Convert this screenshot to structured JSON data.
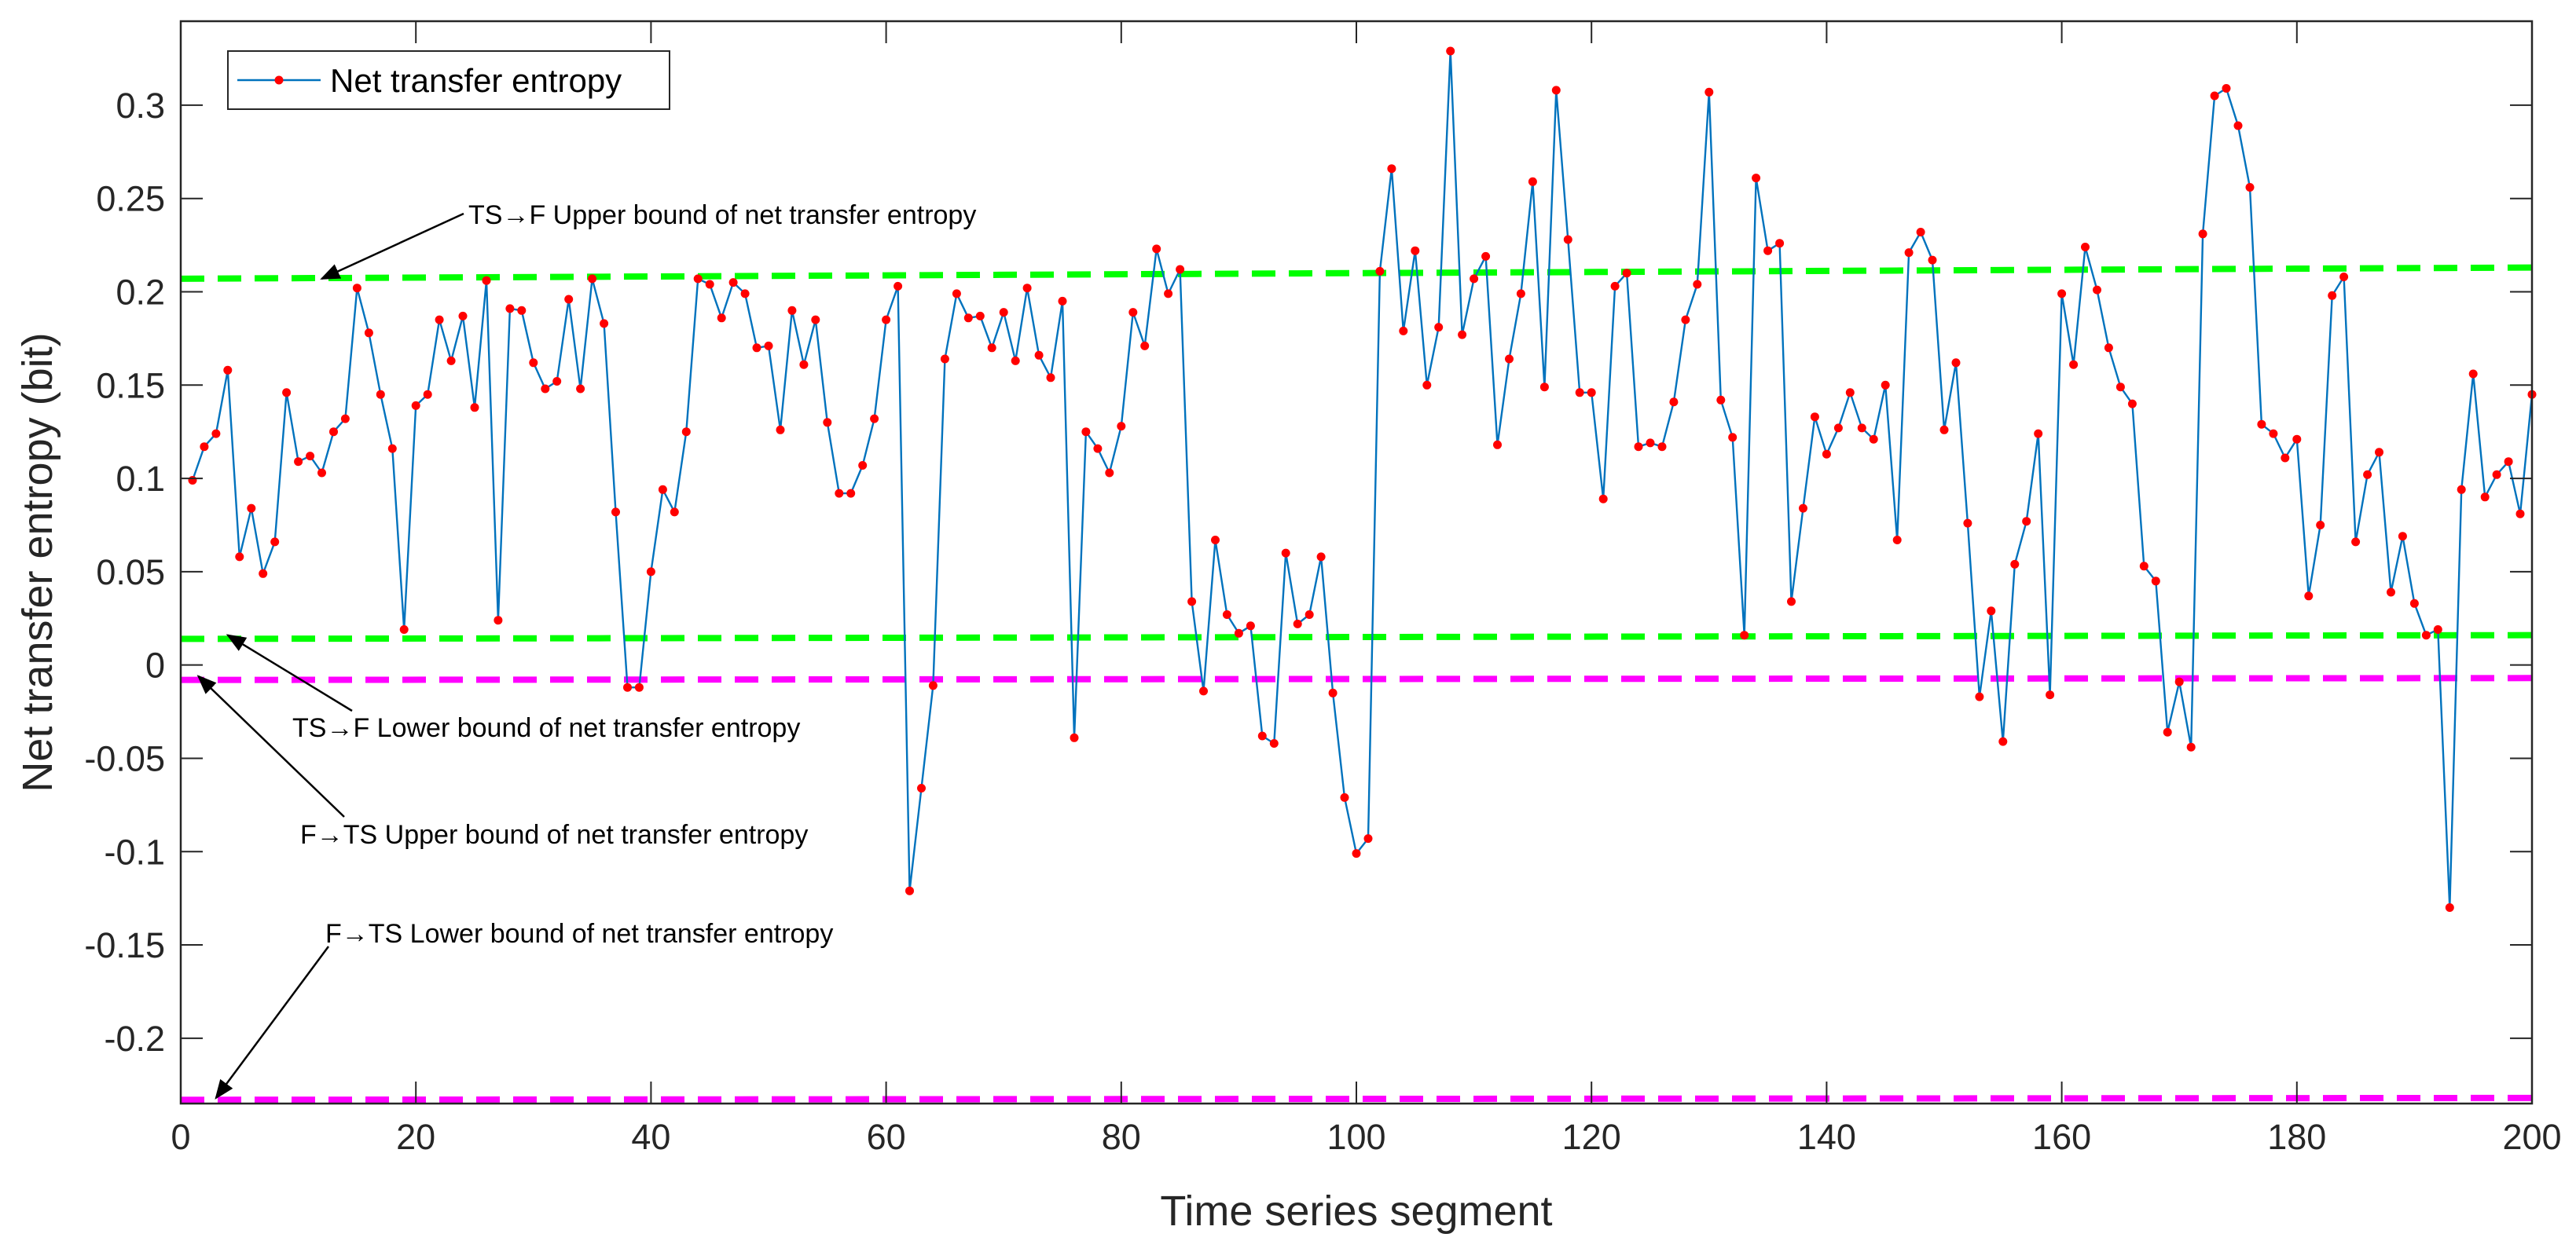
{
  "chart_data": {
    "type": "line",
    "xlabel": "Time series segment",
    "ylabel": "Net transfer entropy (bit)",
    "xlim": [
      0,
      200
    ],
    "ylim": [
      -0.235,
      0.345
    ],
    "x_ticks": [
      0,
      20,
      40,
      60,
      80,
      100,
      120,
      140,
      160,
      180,
      200
    ],
    "y_ticks": [
      0.3,
      0.25,
      0.2,
      0.15,
      0.1,
      0.05,
      0,
      -0.05,
      -0.1,
      -0.15,
      -0.2
    ],
    "x_tick_labels": [
      "0",
      "20",
      "40",
      "60",
      "80",
      "100",
      "120",
      "140",
      "160",
      "180",
      "200"
    ],
    "y_tick_labels": [
      "0.3",
      "0.25",
      "0.2",
      "0.15",
      "0.1",
      "0.05",
      "0",
      "-0.05",
      "-0.1",
      "-0.15",
      "-0.2"
    ],
    "grid": false,
    "legend": {
      "position": "top-left",
      "entries": [
        "Net transfer entropy"
      ]
    },
    "series": [
      {
        "name": "Net transfer entropy",
        "color": "#0072bd",
        "marker_color": "#ff0000",
        "x": [
          1,
          2,
          3,
          4,
          5,
          6,
          7,
          8,
          9,
          10,
          11,
          12,
          13,
          14,
          15,
          16,
          17,
          18,
          19,
          20,
          21,
          22,
          23,
          24,
          25,
          26,
          27,
          28,
          29,
          30,
          31,
          32,
          33,
          34,
          35,
          36,
          37,
          38,
          39,
          40,
          41,
          42,
          43,
          44,
          45,
          46,
          47,
          48,
          49,
          50,
          51,
          52,
          53,
          54,
          55,
          56,
          57,
          58,
          59,
          60,
          61,
          62,
          63,
          64,
          65,
          66,
          67,
          68,
          69,
          70,
          71,
          72,
          73,
          74,
          75,
          76,
          77,
          78,
          79,
          80,
          81,
          82,
          83,
          84,
          85,
          86,
          87,
          88,
          89,
          90,
          91,
          92,
          93,
          94,
          95,
          96,
          97,
          98,
          99,
          100,
          101,
          102,
          103,
          104,
          105,
          106,
          107,
          108,
          109,
          110,
          111,
          112,
          113,
          114,
          115,
          116,
          117,
          118,
          119,
          120,
          121,
          122,
          123,
          124,
          125,
          126,
          127,
          128,
          129,
          130,
          131,
          132,
          133,
          134,
          135,
          136,
          137,
          138,
          139,
          140,
          141,
          142,
          143,
          144,
          145,
          146,
          147,
          148,
          149,
          150,
          151,
          152,
          153,
          154,
          155,
          156,
          157,
          158,
          159,
          160,
          161,
          162,
          163,
          164,
          165,
          166,
          167,
          168,
          169,
          170,
          171,
          172,
          173,
          174,
          175,
          176,
          177,
          178,
          179,
          180,
          181,
          182,
          183,
          184,
          185,
          186,
          187,
          188,
          189,
          190,
          191,
          192,
          193,
          194,
          195,
          196,
          197,
          198,
          199,
          200
        ],
        "values": [
          0.099,
          0.117,
          0.124,
          0.158,
          0.058,
          0.084,
          0.049,
          0.066,
          0.146,
          0.109,
          0.112,
          0.103,
          0.125,
          0.132,
          0.202,
          0.178,
          0.145,
          0.116,
          0.019,
          0.139,
          0.145,
          0.185,
          0.163,
          0.187,
          0.138,
          0.206,
          0.024,
          0.191,
          0.19,
          0.162,
          0.148,
          0.152,
          0.196,
          0.148,
          0.207,
          0.183,
          0.082,
          -0.012,
          -0.012,
          0.05,
          0.094,
          0.082,
          0.125,
          0.207,
          0.204,
          0.186,
          0.205,
          0.199,
          0.17,
          0.171,
          0.126,
          0.19,
          0.161,
          0.185,
          0.13,
          0.092,
          0.092,
          0.107,
          0.132,
          0.185,
          0.203,
          -0.121,
          -0.066,
          -0.011,
          0.164,
          0.199,
          0.186,
          0.187,
          0.17,
          0.189,
          0.163,
          0.202,
          0.166,
          0.154,
          0.195,
          -0.039,
          0.125,
          0.116,
          0.103,
          0.128,
          0.189,
          0.171,
          0.223,
          0.199,
          0.212,
          0.034,
          -0.014,
          0.067,
          0.027,
          0.017,
          0.021,
          -0.038,
          -0.042,
          0.06,
          0.022,
          0.027,
          0.058,
          -0.015,
          -0.071,
          -0.101,
          -0.093,
          0.211,
          0.266,
          0.179,
          0.222,
          0.15,
          0.181,
          0.329,
          0.177,
          0.207,
          0.219,
          0.118,
          0.164,
          0.199,
          0.259,
          0.149,
          0.308,
          0.228,
          0.146,
          0.146,
          0.089,
          0.203,
          0.21,
          0.117,
          0.119,
          0.117,
          0.141,
          0.185,
          0.204,
          0.307,
          0.142,
          0.122,
          0.016,
          0.261,
          0.222,
          0.226,
          0.034,
          0.084,
          0.133,
          0.113,
          0.127,
          0.146,
          0.127,
          0.121,
          0.15,
          0.067,
          0.221,
          0.232,
          0.217,
          0.126,
          0.162,
          0.076,
          -0.017,
          0.029,
          -0.041,
          0.054,
          0.077,
          0.124,
          -0.016,
          0.199,
          0.161,
          0.224,
          0.201,
          0.17,
          0.149,
          0.14,
          0.053,
          0.045,
          -0.036,
          -0.009,
          -0.044,
          0.231,
          0.305,
          0.309,
          0.289,
          0.256,
          0.129,
          0.124,
          0.111,
          0.121,
          0.037,
          0.075,
          0.198,
          0.208,
          0.066,
          0.102,
          0.114,
          0.039,
          0.069,
          0.033,
          0.016,
          0.019,
          -0.13,
          0.094,
          0.156,
          0.09,
          0.102,
          0.109,
          0.081,
          0.145
        ]
      }
    ],
    "reference_lines": [
      {
        "name": "TS→F Upper bound of net transfer entropy",
        "color": "#00ff00",
        "style": "dashed",
        "x": [
          0,
          200
        ],
        "y": [
          0.207,
          0.213
        ]
      },
      {
        "name": "TS→F Lower bound of net transfer entropy",
        "color": "#00ff00",
        "style": "dashed",
        "x": [
          0,
          200
        ],
        "y": [
          0.014,
          0.016
        ]
      },
      {
        "name": "F→TS Upper bound of net transfer entropy",
        "color": "#ff00ff",
        "style": "dashed",
        "x": [
          0,
          200
        ],
        "y": [
          -0.008,
          -0.007
        ]
      },
      {
        "name": "F→TS Lower bound of net transfer entropy",
        "color": "#ff00ff",
        "style": "dashed",
        "x": [
          0,
          200
        ],
        "y": [
          -0.233,
          -0.232
        ]
      }
    ],
    "annotations": [
      {
        "text": "TS→F Upper bound of net transfer entropy",
        "target": [
          12,
          0.207
        ]
      },
      {
        "text": "TS→F Lower bound of net transfer entropy",
        "target": [
          4,
          0.016
        ]
      },
      {
        "text": "F→TS Upper bound of net transfer entropy",
        "target": [
          1.5,
          -0.006
        ]
      },
      {
        "text": "F→TS Lower bound of net transfer entropy",
        "target": [
          3,
          -0.232
        ]
      }
    ]
  }
}
